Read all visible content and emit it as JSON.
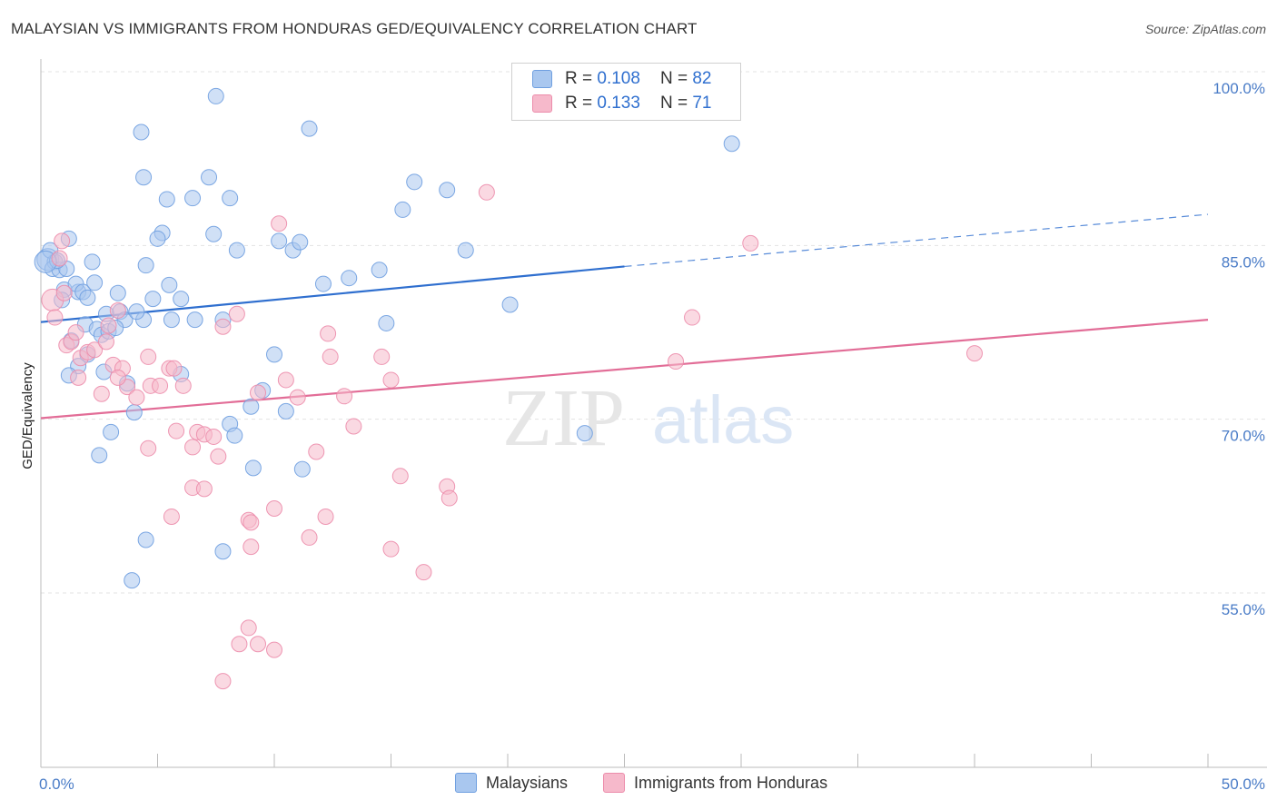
{
  "title": "MALAYSIAN VS IMMIGRANTS FROM HONDURAS GED/EQUIVALENCY CORRELATION CHART",
  "source": "Source: ZipAtlas.com",
  "legend_top": [
    {
      "r_label": "R =",
      "r_value": "0.108",
      "n_label": "N =",
      "n_value": "82",
      "color": "#a9c7ef"
    },
    {
      "r_label": "R =",
      "r_value": "0.133",
      "n_label": "N =",
      "n_value": "71",
      "color": "#f6b9cb"
    }
  ],
  "bottom_legend": [
    "Malaysians",
    "Immigrants from Honduras"
  ],
  "watermark": {
    "zip": "ZIP",
    "atlas": "atlas"
  },
  "chart_data": {
    "type": "scatter",
    "ylabel": "GED/Equivalency",
    "xlim": [
      0,
      50
    ],
    "ylim": [
      40,
      101
    ],
    "x_tick_labels": [
      {
        "x": 0,
        "label": "0.0%"
      },
      {
        "x": 50,
        "label": "50.0%"
      }
    ],
    "y_tick_labels": [
      {
        "y": 100,
        "label": "100.0%"
      },
      {
        "y": 85,
        "label": "85.0%"
      },
      {
        "y": 70,
        "label": "70.0%"
      },
      {
        "y": 55,
        "label": "55.0%"
      }
    ],
    "series": [
      {
        "name": "Malaysians",
        "color": "#6f9fe0",
        "fill": "#a9c7ef",
        "line_color": "#2f6fcf",
        "trend": {
          "x0": 0,
          "y0": 79.8,
          "x1": 25,
          "y1": 84.6,
          "x_dash_end": 50,
          "y_dash_end": 89.1
        },
        "points": [
          [
            0.3,
            85.2
          ],
          [
            0.6,
            85.0
          ],
          [
            0.5,
            84.4
          ],
          [
            0.4,
            86.0
          ],
          [
            0.8,
            84.3
          ],
          [
            1.2,
            87.0
          ],
          [
            1.0,
            82.6
          ],
          [
            0.9,
            81.7
          ],
          [
            1.1,
            84.4
          ],
          [
            1.6,
            82.4
          ],
          [
            1.5,
            83.1
          ],
          [
            1.8,
            82.4
          ],
          [
            2.3,
            83.2
          ],
          [
            2.2,
            85.0
          ],
          [
            1.3,
            78.2
          ],
          [
            1.9,
            79.6
          ],
          [
            2.4,
            79.2
          ],
          [
            2.6,
            78.7
          ],
          [
            2.8,
            80.5
          ],
          [
            2.9,
            79.0
          ],
          [
            3.3,
            82.3
          ],
          [
            3.4,
            80.7
          ],
          [
            3.6,
            80.0
          ],
          [
            4.4,
            80.0
          ],
          [
            4.8,
            81.8
          ],
          [
            3.2,
            79.3
          ],
          [
            2.0,
            77.0
          ],
          [
            1.6,
            76.0
          ],
          [
            1.2,
            75.2
          ],
          [
            2.7,
            75.5
          ],
          [
            3.7,
            74.5
          ],
          [
            4.0,
            72.0
          ],
          [
            3.0,
            70.3
          ],
          [
            2.5,
            68.3
          ],
          [
            6.0,
            75.3
          ],
          [
            4.5,
            84.7
          ],
          [
            5.2,
            87.5
          ],
          [
            5.0,
            87.0
          ],
          [
            5.5,
            83.0
          ],
          [
            6.0,
            81.8
          ],
          [
            5.6,
            80.0
          ],
          [
            6.6,
            80.0
          ],
          [
            7.8,
            80.0
          ],
          [
            4.1,
            80.7
          ],
          [
            4.3,
            96.2
          ],
          [
            4.4,
            92.3
          ],
          [
            5.4,
            90.4
          ],
          [
            6.5,
            90.5
          ],
          [
            7.2,
            92.3
          ],
          [
            8.1,
            90.5
          ],
          [
            7.4,
            87.4
          ],
          [
            8.4,
            86.0
          ],
          [
            7.5,
            99.3
          ],
          [
            10.2,
            86.8
          ],
          [
            10.8,
            86.0
          ],
          [
            11.1,
            86.7
          ],
          [
            11.5,
            96.5
          ],
          [
            10.0,
            77.0
          ],
          [
            8.1,
            71.0
          ],
          [
            8.3,
            70.0
          ],
          [
            9.0,
            72.5
          ],
          [
            9.5,
            73.9
          ],
          [
            10.5,
            72.1
          ],
          [
            11.2,
            67.1
          ],
          [
            9.1,
            67.2
          ],
          [
            12.1,
            83.1
          ],
          [
            13.2,
            83.6
          ],
          [
            14.5,
            84.3
          ],
          [
            15.5,
            89.5
          ],
          [
            16.0,
            91.9
          ],
          [
            17.4,
            91.2
          ],
          [
            18.2,
            86.0
          ],
          [
            14.8,
            79.7
          ],
          [
            20.1,
            81.3
          ],
          [
            23.3,
            70.2
          ],
          [
            29.6,
            95.2
          ],
          [
            4.5,
            61.0
          ],
          [
            3.9,
            57.5
          ],
          [
            7.8,
            60.0
          ],
          [
            2.0,
            81.9
          ],
          [
            0.7,
            85.1
          ],
          [
            0.2,
            85.0
          ]
        ]
      },
      {
        "name": "Immigrants from Honduras",
        "color": "#ec8cab",
        "fill": "#f6b9cb",
        "line_color": "#e26d97",
        "trend": {
          "x0": 0,
          "y0": 71.5,
          "x1": 50,
          "y1": 80.0
        },
        "points": [
          [
            0.5,
            81.7
          ],
          [
            0.6,
            80.2
          ],
          [
            0.8,
            85.3
          ],
          [
            1.0,
            82.3
          ],
          [
            1.1,
            77.8
          ],
          [
            1.3,
            78.1
          ],
          [
            1.5,
            78.9
          ],
          [
            1.7,
            76.7
          ],
          [
            2.0,
            77.2
          ],
          [
            2.3,
            77.4
          ],
          [
            2.8,
            78.1
          ],
          [
            3.1,
            76.1
          ],
          [
            3.5,
            75.8
          ],
          [
            3.7,
            74.2
          ],
          [
            4.1,
            73.3
          ],
          [
            2.6,
            73.6
          ],
          [
            3.3,
            75.0
          ],
          [
            4.7,
            74.3
          ],
          [
            5.1,
            74.3
          ],
          [
            5.5,
            75.8
          ],
          [
            6.1,
            74.3
          ],
          [
            3.3,
            80.8
          ],
          [
            4.6,
            76.8
          ],
          [
            5.7,
            75.8
          ],
          [
            5.8,
            70.4
          ],
          [
            6.5,
            69.0
          ],
          [
            6.7,
            70.3
          ],
          [
            7.0,
            70.1
          ],
          [
            7.4,
            69.9
          ],
          [
            7.6,
            68.2
          ],
          [
            4.6,
            68.9
          ],
          [
            6.5,
            65.5
          ],
          [
            7.0,
            65.4
          ],
          [
            5.6,
            63.0
          ],
          [
            7.8,
            79.4
          ],
          [
            8.4,
            80.5
          ],
          [
            9.3,
            73.7
          ],
          [
            10.2,
            88.3
          ],
          [
            10.5,
            74.8
          ],
          [
            11.0,
            73.3
          ],
          [
            11.8,
            68.6
          ],
          [
            12.3,
            78.8
          ],
          [
            12.4,
            76.8
          ],
          [
            13.0,
            73.4
          ],
          [
            13.4,
            70.8
          ],
          [
            14.6,
            76.8
          ],
          [
            15.0,
            74.8
          ],
          [
            15.4,
            66.5
          ],
          [
            12.2,
            63.0
          ],
          [
            11.5,
            61.2
          ],
          [
            10.0,
            63.7
          ],
          [
            8.9,
            62.7
          ],
          [
            9.0,
            60.4
          ],
          [
            8.9,
            53.4
          ],
          [
            9.3,
            52.0
          ],
          [
            10.0,
            51.5
          ],
          [
            8.5,
            52.0
          ],
          [
            7.8,
            48.8
          ],
          [
            15.0,
            60.2
          ],
          [
            16.4,
            58.2
          ],
          [
            17.4,
            65.6
          ],
          [
            17.5,
            64.6
          ],
          [
            19.1,
            91.0
          ],
          [
            27.2,
            76.4
          ],
          [
            27.9,
            80.2
          ],
          [
            30.4,
            86.6
          ],
          [
            40.0,
            77.1
          ],
          [
            0.9,
            86.8
          ],
          [
            2.9,
            79.5
          ],
          [
            1.6,
            75.0
          ],
          [
            9.0,
            62.5
          ]
        ]
      }
    ]
  }
}
